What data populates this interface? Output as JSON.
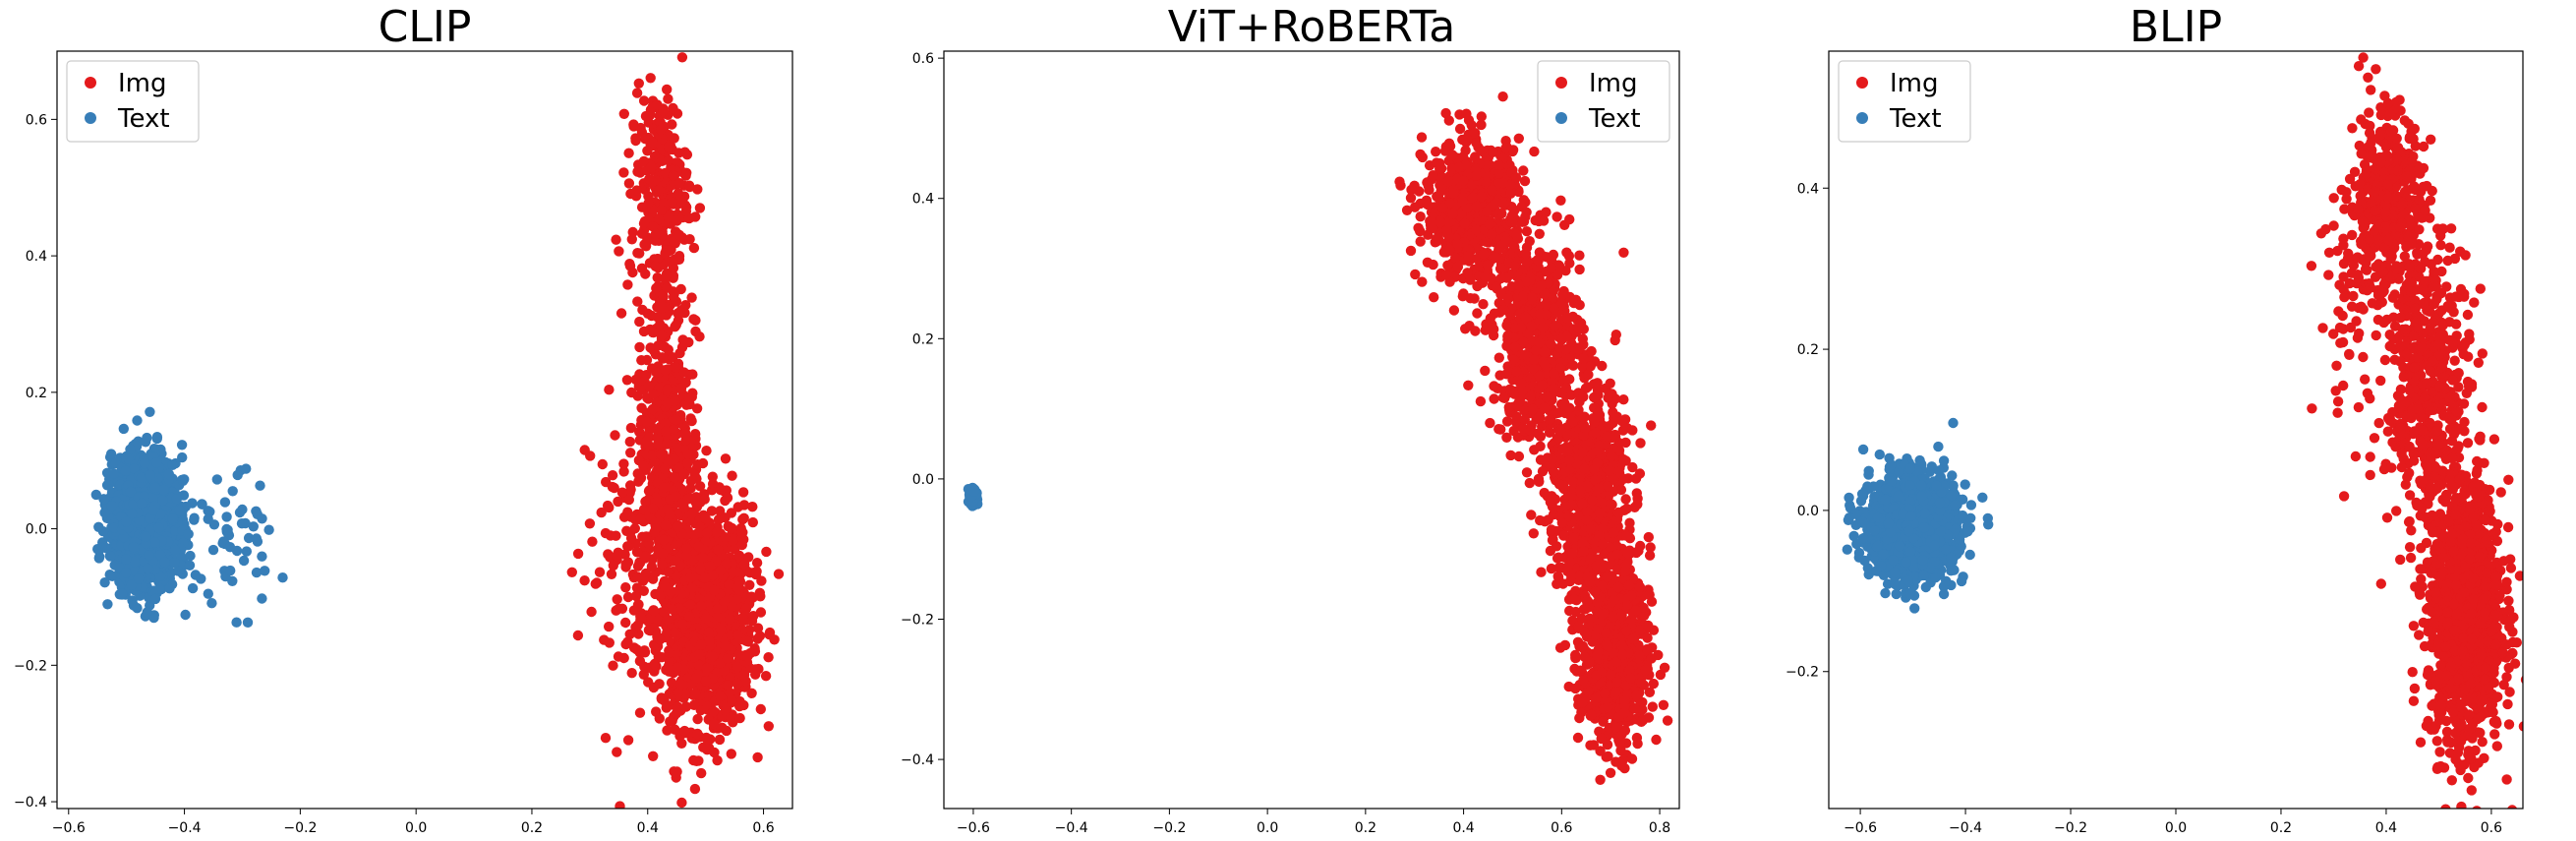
{
  "chart_data": [
    {
      "type": "scatter",
      "title": "CLIP",
      "xlim": [
        -0.62,
        0.65
      ],
      "ylim": [
        -0.41,
        0.7
      ],
      "xticks": [
        -0.6,
        -0.4,
        -0.2,
        0.0,
        0.2,
        0.4,
        0.6
      ],
      "yticks": [
        -0.4,
        -0.2,
        0.0,
        0.2,
        0.4,
        0.6
      ],
      "legend": {
        "location": "upper left"
      },
      "series": [
        {
          "name": "Img",
          "color": "#e41a1c",
          "clusters": [
            {
              "cx": 0.5,
              "cy": -0.13,
              "sx": 0.04,
              "sy": 0.08,
              "n": 1400
            },
            {
              "cx": 0.43,
              "cy": 0.15,
              "sx": 0.025,
              "sy": 0.13,
              "n": 500
            },
            {
              "cx": 0.42,
              "cy": 0.5,
              "sx": 0.025,
              "sy": 0.07,
              "n": 250
            },
            {
              "cx": 0.36,
              "cy": -0.05,
              "sx": 0.04,
              "sy": 0.12,
              "n": 120
            }
          ]
        },
        {
          "name": "Text",
          "color": "#377eb8",
          "clusters": [
            {
              "cx": -0.47,
              "cy": 0.01,
              "sx": 0.028,
              "sy": 0.045,
              "n": 1800
            },
            {
              "cx": -0.33,
              "cy": -0.02,
              "sx": 0.05,
              "sy": 0.05,
              "n": 60
            }
          ]
        }
      ]
    },
    {
      "type": "scatter",
      "title": "ViT+RoBERTa",
      "xlim": [
        -0.66,
        0.84
      ],
      "ylim": [
        -0.47,
        0.61
      ],
      "xticks": [
        -0.6,
        -0.4,
        -0.2,
        0.0,
        0.2,
        0.4,
        0.6,
        0.8
      ],
      "yticks": [
        -0.4,
        -0.2,
        0.0,
        0.2,
        0.4,
        0.6
      ],
      "legend": {
        "location": "upper right"
      },
      "series": [
        {
          "name": "Img",
          "color": "#e41a1c",
          "clusters": [
            {
              "cx": 0.42,
              "cy": 0.38,
              "sx": 0.05,
              "sy": 0.05,
              "n": 700
            },
            {
              "cx": 0.55,
              "cy": 0.2,
              "sx": 0.045,
              "sy": 0.07,
              "n": 600
            },
            {
              "cx": 0.65,
              "cy": -0.02,
              "sx": 0.04,
              "sy": 0.08,
              "n": 700
            },
            {
              "cx": 0.71,
              "cy": -0.25,
              "sx": 0.035,
              "sy": 0.07,
              "n": 700
            }
          ]
        },
        {
          "name": "Text",
          "color": "#377eb8",
          "clusters": [
            {
              "cx": -0.6,
              "cy": -0.025,
              "sx": 0.003,
              "sy": 0.005,
              "n": 300
            }
          ]
        }
      ]
    },
    {
      "type": "scatter",
      "title": "BLIP",
      "xlim": [
        -0.66,
        0.66
      ],
      "ylim": [
        -0.37,
        0.57
      ],
      "xticks": [
        -0.6,
        -0.4,
        -0.2,
        0.0,
        0.2,
        0.4,
        0.6
      ],
      "yticks": [
        -0.2,
        0.0,
        0.2,
        0.4
      ],
      "legend": {
        "location": "upper left"
      },
      "series": [
        {
          "name": "Img",
          "color": "#e41a1c",
          "clusters": [
            {
              "cx": 0.55,
              "cy": -0.13,
              "sx": 0.035,
              "sy": 0.08,
              "n": 1400
            },
            {
              "cx": 0.48,
              "cy": 0.15,
              "sx": 0.04,
              "sy": 0.09,
              "n": 500
            },
            {
              "cx": 0.4,
              "cy": 0.38,
              "sx": 0.035,
              "sy": 0.06,
              "n": 450
            },
            {
              "cx": 0.33,
              "cy": 0.25,
              "sx": 0.03,
              "sy": 0.07,
              "n": 60
            }
          ]
        },
        {
          "name": "Text",
          "color": "#377eb8",
          "clusters": [
            {
              "cx": -0.5,
              "cy": -0.02,
              "sx": 0.04,
              "sy": 0.03,
              "n": 1800
            }
          ]
        }
      ]
    }
  ]
}
